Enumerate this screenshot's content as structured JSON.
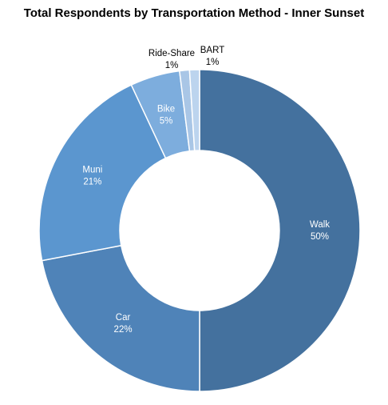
{
  "chart_data": {
    "type": "pie",
    "title": "Total Respondents by Transportation Method - Inner Sunset",
    "categories": [
      "Walk",
      "Car",
      "Muni",
      "Bike",
      "Ride-Share",
      "BART"
    ],
    "values": [
      50,
      22,
      21,
      5,
      1,
      1
    ],
    "value_labels": [
      "50%",
      "22%",
      "21%",
      "5%",
      "1%",
      "1%"
    ],
    "colors": [
      "#44719e",
      "#4f83b8",
      "#5b96cf",
      "#7daddd",
      "#a9c6e6",
      "#bcd4ee"
    ],
    "label_colors": [
      "#ffffff",
      "#ffffff",
      "#ffffff",
      "#ffffff",
      "#000000",
      "#000000"
    ],
    "donut": true,
    "legend": "none"
  }
}
